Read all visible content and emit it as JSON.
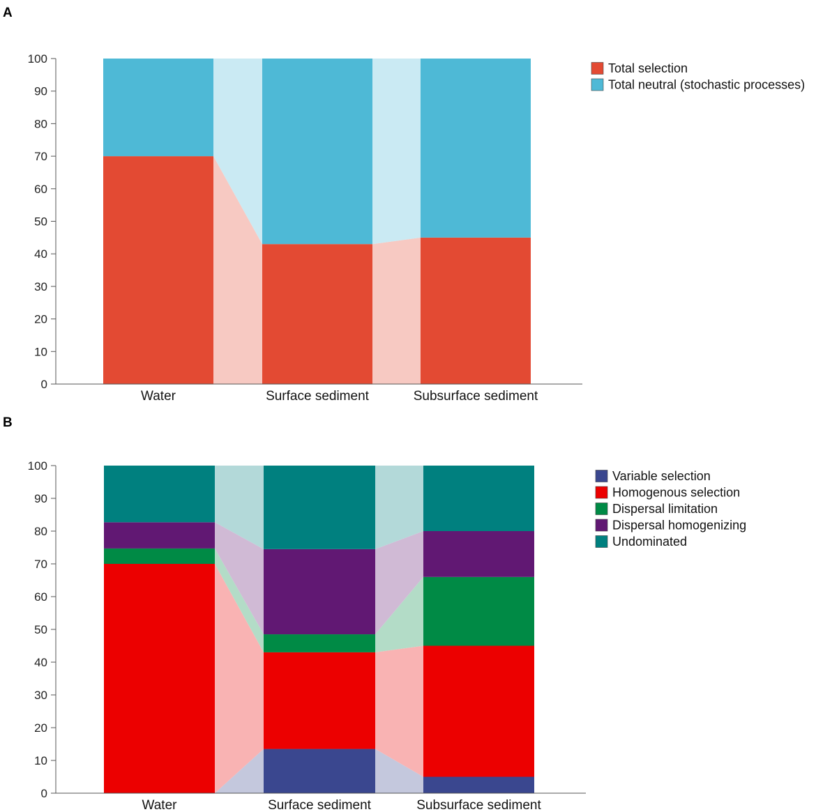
{
  "chart_data": [
    {
      "panel": "A",
      "type": "bar",
      "stacked": true,
      "categories": [
        "Water",
        "Surface sediment",
        "Subsurface sediment"
      ],
      "ylim": [
        0,
        100
      ],
      "yticks": [
        0,
        10,
        20,
        30,
        40,
        50,
        60,
        70,
        80,
        90,
        100
      ],
      "legend_position": "right",
      "series": [
        {
          "name": "Total selection",
          "color": "#e34a33",
          "values": [
            70,
            43,
            45
          ]
        },
        {
          "name": "Total neutral (stochastic processes)",
          "color": "#4eb9d6",
          "values": [
            30,
            57,
            55
          ]
        }
      ]
    },
    {
      "panel": "B",
      "type": "bar",
      "stacked": true,
      "categories": [
        "Water",
        "Surface sediment",
        "Subsurface sediment"
      ],
      "ylim": [
        0,
        100
      ],
      "yticks": [
        0,
        10,
        20,
        30,
        40,
        50,
        60,
        70,
        80,
        90,
        100
      ],
      "legend_position": "right",
      "series": [
        {
          "name": "Variable selection",
          "color": "#3a478f",
          "values": [
            0,
            13.5,
            5
          ]
        },
        {
          "name": "Homogenous selection",
          "color": "#ec0000",
          "values": [
            70,
            29.5,
            40
          ]
        },
        {
          "name": "Dispersal limitation",
          "color": "#008a45",
          "values": [
            4.7,
            5.5,
            21
          ]
        },
        {
          "name": "Dispersal homogenizing",
          "color": "#611873",
          "values": [
            8,
            26,
            14
          ]
        },
        {
          "name": "Undominated",
          "color": "#00807f",
          "values": [
            17.3,
            25.5,
            20
          ]
        }
      ]
    }
  ]
}
